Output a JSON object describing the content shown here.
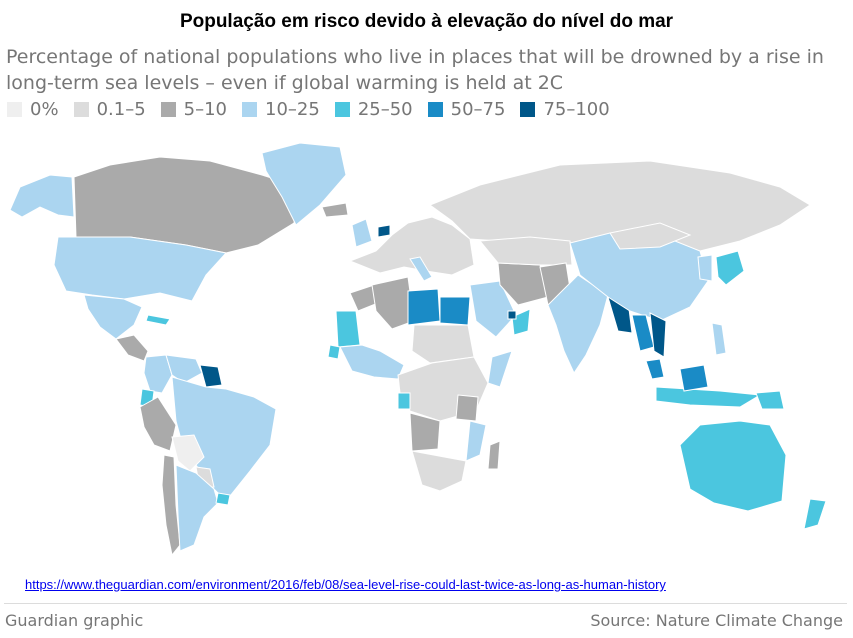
{
  "header": {
    "title": "População em risco devido à elevação do nível do mar",
    "subtitle": "Percentage of national populations who live in places that will be drowned by a rise in long-term sea levels – even if global warming is held at 2C"
  },
  "legend": [
    {
      "label": "0%",
      "color": "#efefef"
    },
    {
      "label": "0.1–5",
      "color": "#dcdcdc"
    },
    {
      "label": "5–10",
      "color": "#aaaaaa"
    },
    {
      "label": "10–25",
      "color": "#abd5f0"
    },
    {
      "label": "25–50",
      "color": "#4bc6df"
    },
    {
      "label": "50–75",
      "color": "#1a8bc6"
    },
    {
      "label": "75–100",
      "color": "#005789"
    }
  ],
  "map": {
    "type": "choropleth",
    "ocean_color": "#ffffff",
    "border_color": "#ffffff",
    "regions": [
      {
        "name": "Alaska",
        "band": "10–25"
      },
      {
        "name": "Canada",
        "band": "5–10"
      },
      {
        "name": "Greenland",
        "band": "10–25"
      },
      {
        "name": "United States",
        "band": "10–25"
      },
      {
        "name": "Mexico",
        "band": "10–25"
      },
      {
        "name": "Cuba",
        "band": "25–50"
      },
      {
        "name": "Central America",
        "band": "5–10"
      },
      {
        "name": "Colombia",
        "band": "10–25"
      },
      {
        "name": "Venezuela",
        "band": "10–25"
      },
      {
        "name": "Guyana / Suriname",
        "band": "75–100"
      },
      {
        "name": "Ecuador",
        "band": "25–50"
      },
      {
        "name": "Peru",
        "band": "5–10"
      },
      {
        "name": "Brazil",
        "band": "10–25"
      },
      {
        "name": "Bolivia",
        "band": "0%"
      },
      {
        "name": "Paraguay",
        "band": "0.1–5"
      },
      {
        "name": "Chile",
        "band": "5–10"
      },
      {
        "name": "Argentina",
        "band": "10–25"
      },
      {
        "name": "Uruguay",
        "band": "25–50"
      },
      {
        "name": "Iceland",
        "band": "5–10"
      },
      {
        "name": "United Kingdom / Ireland",
        "band": "10–25"
      },
      {
        "name": "Netherlands",
        "band": "75–100"
      },
      {
        "name": "Europe",
        "band": "0.1–5"
      },
      {
        "name": "Italy",
        "band": "10–25"
      },
      {
        "name": "Russia",
        "band": "0.1–5"
      },
      {
        "name": "Morocco",
        "band": "5–10"
      },
      {
        "name": "Algeria",
        "band": "5–10"
      },
      {
        "name": "Mauritania",
        "band": "25–50"
      },
      {
        "name": "West Africa",
        "band": "10–25"
      },
      {
        "name": "Senegal",
        "band": "25–50"
      },
      {
        "name": "Libya",
        "band": "50–75"
      },
      {
        "name": "Egypt",
        "band": "50–75"
      },
      {
        "name": "Sudan / Chad",
        "band": "0.1–5"
      },
      {
        "name": "Somalia",
        "band": "10–25"
      },
      {
        "name": "Central Africa",
        "band": "0.1–5"
      },
      {
        "name": "Gabon",
        "band": "25–50"
      },
      {
        "name": "Angola",
        "band": "5–10"
      },
      {
        "name": "Mozambique",
        "band": "10–25"
      },
      {
        "name": "Tanzania",
        "band": "5–10"
      },
      {
        "name": "Southern Africa",
        "band": "0.1–5"
      },
      {
        "name": "Madagascar",
        "band": "5–10"
      },
      {
        "name": "Saudi Arabia",
        "band": "10–25"
      },
      {
        "name": "Oman",
        "band": "25–50"
      },
      {
        "name": "UAE",
        "band": "75–100"
      },
      {
        "name": "Iran",
        "band": "5–10"
      },
      {
        "name": "Kazakhstan / Central Asia",
        "band": "0.1–5"
      },
      {
        "name": "Pakistan",
        "band": "5–10"
      },
      {
        "name": "India",
        "band": "10–25"
      },
      {
        "name": "Bangladesh / Myanmar",
        "band": "75–100"
      },
      {
        "name": "China",
        "band": "10–25"
      },
      {
        "name": "Mongolia",
        "band": "0.1–5"
      },
      {
        "name": "Korea",
        "band": "10–25"
      },
      {
        "name": "Japan",
        "band": "25–50"
      },
      {
        "name": "Thailand",
        "band": "50–75"
      },
      {
        "name": "Vietnam",
        "band": "75–100"
      },
      {
        "name": "Malaysia",
        "band": "50–75"
      },
      {
        "name": "Indonesia",
        "band": "25–50"
      },
      {
        "name": "Borneo",
        "band": "50–75"
      },
      {
        "name": "Philippines",
        "band": "10–25"
      },
      {
        "name": "Papua New Guinea",
        "band": "25–50"
      },
      {
        "name": "Australia",
        "band": "25–50"
      },
      {
        "name": "New Zealand",
        "band": "25–50"
      }
    ]
  },
  "footer": {
    "url": "https://www.theguardian.com/environment/2016/feb/08/sea-level-rise-could-last-twice-as-long-as-human-history",
    "credit": "Guardian graphic",
    "source": "Source: Nature Climate Change"
  }
}
